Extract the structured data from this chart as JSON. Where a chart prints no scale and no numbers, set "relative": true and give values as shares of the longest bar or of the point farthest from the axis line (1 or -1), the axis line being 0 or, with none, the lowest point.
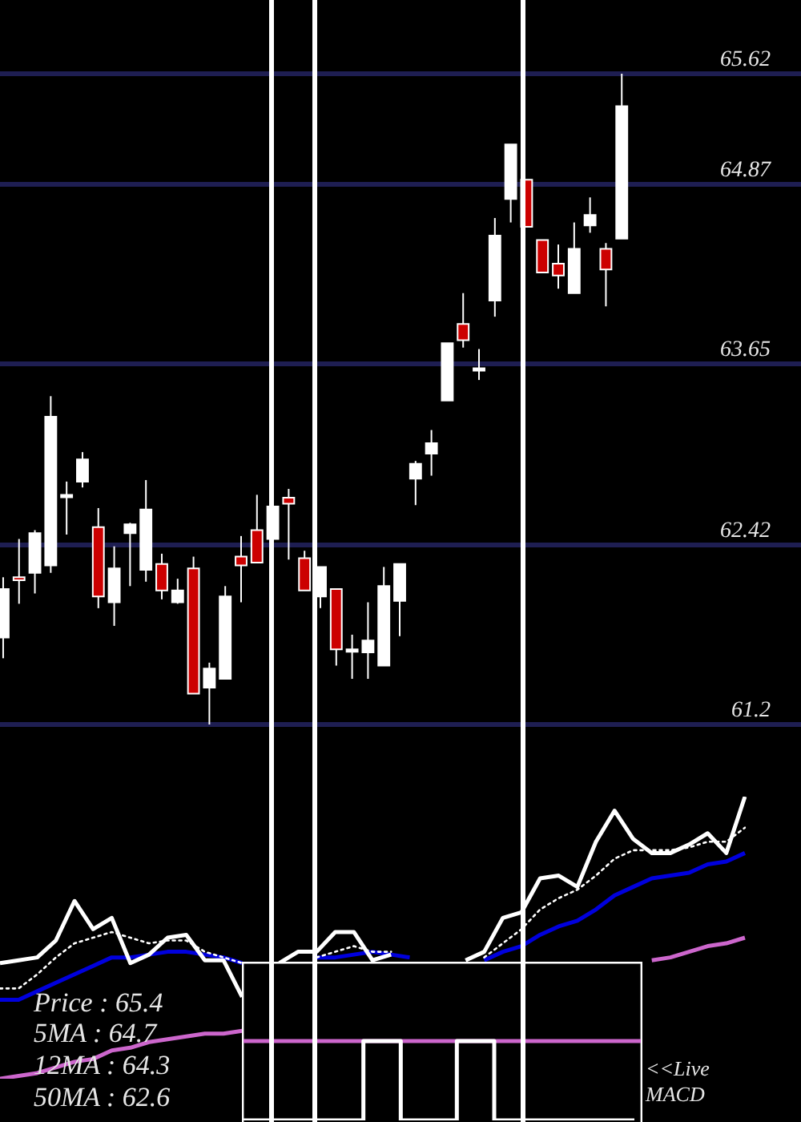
{
  "chart_data": [
    {
      "type": "candlestick",
      "categories": [
        null,
        null,
        null,
        null,
        null,
        null,
        null,
        null,
        null,
        null,
        null,
        null,
        null,
        null,
        null,
        null,
        null,
        null,
        null,
        null,
        null,
        null,
        null,
        null,
        null,
        null,
        null,
        null,
        null,
        null,
        null,
        null,
        null,
        null,
        null,
        null,
        null,
        null,
        null,
        null
      ],
      "ohlc": [
        [
          61.79,
          62.2,
          61.65,
          62.12
        ],
        [
          62.2,
          62.46,
          62.02,
          62.18
        ],
        [
          62.23,
          62.52,
          62.09,
          62.5
        ],
        [
          62.28,
          63.43,
          62.23,
          63.29
        ],
        [
          62.76,
          62.85,
          62.49,
          62.76
        ],
        [
          62.85,
          63.05,
          62.81,
          63.0
        ],
        [
          62.54,
          62.67,
          61.99,
          62.07
        ],
        [
          62.03,
          62.41,
          61.87,
          62.26
        ],
        [
          62.5,
          62.57,
          62.14,
          62.56
        ],
        [
          62.25,
          62.86,
          62.17,
          62.66
        ],
        [
          62.29,
          62.36,
          62.05,
          62.11
        ],
        [
          62.03,
          62.19,
          62.02,
          62.11
        ],
        [
          62.26,
          62.34,
          61.41,
          61.41
        ],
        [
          61.45,
          61.62,
          61.2,
          61.58
        ],
        [
          61.51,
          62.14,
          61.51,
          62.07
        ],
        [
          62.34,
          62.48,
          62.03,
          62.28
        ],
        [
          62.52,
          62.76,
          62.3,
          62.3
        ],
        [
          62.46,
          62.8,
          62.31,
          62.68
        ],
        [
          62.74,
          62.8,
          62.32,
          62.7
        ],
        [
          62.33,
          62.38,
          62.11,
          62.11
        ],
        [
          62.07,
          62.27,
          61.99,
          62.27
        ],
        [
          62.12,
          62.12,
          61.6,
          61.71
        ],
        [
          61.71,
          61.81,
          61.51,
          61.71
        ],
        [
          61.69,
          62.03,
          61.51,
          61.77
        ],
        [
          61.6,
          62.27,
          61.6,
          62.14
        ],
        [
          62.04,
          62.29,
          61.8,
          62.29
        ],
        [
          62.87,
          62.99,
          62.69,
          62.97
        ],
        [
          63.04,
          63.2,
          62.89,
          63.11
        ],
        [
          63.4,
          63.79,
          63.4,
          63.79
        ],
        [
          63.92,
          64.13,
          63.76,
          63.81
        ],
        [
          63.62,
          63.75,
          63.54,
          63.62
        ],
        [
          64.08,
          64.64,
          63.97,
          64.52
        ],
        [
          64.77,
          65.14,
          64.61,
          65.14
        ],
        [
          64.9,
          64.9,
          64.58,
          64.58
        ],
        [
          64.49,
          64.49,
          64.27,
          64.27
        ],
        [
          64.33,
          64.46,
          64.16,
          64.25
        ],
        [
          64.13,
          64.61,
          64.13,
          64.43
        ],
        [
          64.59,
          64.78,
          64.54,
          64.66
        ],
        [
          64.43,
          64.47,
          64.04,
          64.29
        ],
        [
          64.5,
          65.62,
          64.5,
          65.4
        ]
      ],
      "colors": [
        "#ffffff",
        "#cc0000",
        "#ffffff",
        "#ffffff",
        "#ffffff",
        "#ffffff",
        "#cc0000",
        "#ffffff",
        "#ffffff",
        "#ffffff",
        "#cc0000",
        "#ffffff",
        "#cc0000",
        "#ffffff",
        "#ffffff",
        "#cc0000",
        "#cc0000",
        "#ffffff",
        "#cc0000",
        "#cc0000",
        "#ffffff",
        "#cc0000",
        "#ffffff",
        "#ffffff",
        "#ffffff",
        "#ffffff",
        "#ffffff",
        "#ffffff",
        "#ffffff",
        "#cc0000",
        "#ffffff",
        "#ffffff",
        "#ffffff",
        "#cc0000",
        "#cc0000",
        "#cc0000",
        "#ffffff",
        "#ffffff",
        "#cc0000",
        "#ffffff"
      ],
      "ylim": [
        61.2,
        65.62
      ],
      "yticks": [
        61.2,
        62.42,
        63.65,
        64.87,
        65.62
      ],
      "grid": "y",
      "tick_labels": "y"
    },
    {
      "type": "line",
      "relative": true,
      "categories": [
        null,
        null,
        null,
        null,
        null,
        null,
        null,
        null,
        null,
        null,
        null,
        null,
        null,
        null,
        null,
        null,
        null,
        null,
        null,
        null,
        null,
        null,
        null,
        null,
        null,
        null,
        null,
        null,
        null,
        null,
        null,
        null,
        null,
        null,
        null,
        null,
        null,
        null,
        null,
        null,
        null
      ],
      "series": [
        {
          "color": "#ffffff",
          "values": [
            0.41,
            0.42,
            0.43,
            0.49,
            0.63,
            0.53,
            0.57,
            0.41,
            0.44,
            0.5,
            0.51,
            0.42,
            0.42,
            0.29,
            null,
            null,
            null,
            null,
            null,
            null,
            null,
            null,
            null,
            null,
            null,
            null,
            null,
            null,
            null,
            null,
            null,
            null,
            null,
            null,
            null,
            null,
            null,
            null,
            null,
            null,
            null
          ]
        },
        {
          "color": "#ffffff",
          "values": [
            null,
            null,
            null,
            null,
            null,
            null,
            null,
            null,
            null,
            null,
            null,
            null,
            null,
            null,
            null,
            0.41,
            0.45,
            0.45,
            0.52,
            0.52,
            0.42,
            0.44,
            null,
            null,
            null,
            null,
            null,
            null,
            null,
            null,
            null,
            null,
            null,
            null,
            null,
            null,
            null,
            null,
            null,
            null,
            null
          ]
        },
        {
          "color": "#ffffff",
          "values": [
            null,
            null,
            null,
            null,
            null,
            null,
            null,
            null,
            null,
            null,
            null,
            null,
            null,
            null,
            null,
            null,
            null,
            null,
            null,
            null,
            null,
            null,
            null,
            null,
            null,
            0.42,
            0.45,
            0.57,
            0.59,
            0.71,
            0.72,
            0.68,
            0.84,
            0.95,
            0.85,
            0.8,
            0.8,
            0.83,
            0.87,
            0.8,
            1
          ]
        },
        {
          "color": "#ffffff",
          "line_style": "dotted",
          "values": [
            0.32,
            0.32,
            0.37,
            0.43,
            0.48,
            0.5,
            0.52,
            0.5,
            0.48,
            0.49,
            0.49,
            0.45,
            0.43,
            0.41,
            null,
            null,
            null,
            null,
            null,
            null,
            null,
            null,
            null,
            null,
            null,
            null,
            null,
            null,
            null,
            null,
            null,
            null,
            null,
            null,
            null,
            null,
            null,
            null,
            null,
            null,
            null
          ]
        },
        {
          "color": "#ffffff",
          "line_style": "dotted",
          "values": [
            null,
            null,
            null,
            null,
            null,
            null,
            null,
            null,
            null,
            null,
            null,
            null,
            null,
            null,
            null,
            null,
            null,
            0.43,
            0.45,
            0.47,
            0.45,
            0.45,
            null,
            null,
            null,
            null,
            null,
            null,
            null,
            null,
            null,
            null,
            null,
            null,
            null,
            null,
            null,
            null,
            null,
            null,
            null
          ]
        },
        {
          "color": "#ffffff",
          "line_style": "dotted",
          "values": [
            null,
            null,
            null,
            null,
            null,
            null,
            null,
            null,
            null,
            null,
            null,
            null,
            null,
            null,
            null,
            null,
            null,
            null,
            null,
            null,
            null,
            null,
            null,
            null,
            null,
            null,
            0.43,
            0.48,
            0.53,
            0.6,
            0.64,
            0.67,
            0.72,
            0.78,
            0.81,
            0.81,
            0.81,
            0.82,
            0.84,
            0.84,
            0.89
          ]
        },
        {
          "color": "#0000dd",
          "values": [
            0.28,
            0.28,
            0.31,
            0.34,
            0.37,
            0.4,
            0.43,
            0.43,
            0.44,
            0.45,
            0.45,
            0.44,
            0.43,
            0.41,
            null,
            null,
            null,
            null,
            null,
            null,
            null,
            null,
            null,
            null,
            null,
            null,
            null,
            null,
            null,
            null,
            null,
            null,
            null,
            null,
            null,
            null,
            null,
            null,
            null,
            null,
            null
          ]
        },
        {
          "color": "#0000dd",
          "values": [
            null,
            null,
            null,
            null,
            null,
            null,
            null,
            null,
            null,
            null,
            null,
            null,
            null,
            null,
            null,
            null,
            null,
            0.43,
            0.43,
            0.44,
            0.45,
            0.44,
            0.43,
            null,
            null,
            null,
            null,
            null,
            null,
            null,
            null,
            null,
            null,
            null,
            null,
            null,
            null,
            null,
            null,
            null,
            null
          ]
        },
        {
          "color": "#0000dd",
          "values": [
            null,
            null,
            null,
            null,
            null,
            null,
            null,
            null,
            null,
            null,
            null,
            null,
            null,
            null,
            null,
            null,
            null,
            null,
            null,
            null,
            null,
            null,
            null,
            null,
            null,
            null,
            0.42,
            0.45,
            0.47,
            0.51,
            0.54,
            0.56,
            0.6,
            0.65,
            0.68,
            0.71,
            0.72,
            0.73,
            0.76,
            0.77,
            0.8
          ]
        },
        {
          "color": "#cc66cc",
          "values": [
            0,
            0.01,
            0.02,
            0.04,
            0.06,
            0.07,
            0.1,
            0.11,
            0.13,
            0.14,
            0.15,
            0.16,
            0.16,
            0.17,
            null,
            null,
            null,
            null,
            null,
            null,
            null,
            null,
            null,
            null,
            null,
            null,
            null,
            null,
            null,
            null,
            null,
            null,
            null,
            null,
            null,
            null,
            null,
            null,
            null,
            null,
            null
          ]
        },
        {
          "color": "#cc66cc",
          "values": [
            null,
            null,
            null,
            null,
            null,
            null,
            null,
            null,
            null,
            null,
            null,
            null,
            null,
            null,
            null,
            null,
            null,
            null,
            null,
            null,
            null,
            null,
            null,
            null,
            null,
            null,
            null,
            null,
            null,
            null,
            null,
            null,
            null,
            null,
            null,
            0.42,
            0.43,
            0.45,
            0.47,
            0.48,
            0.5
          ]
        }
      ],
      "annotations": [
        "Price : 65.4",
        "5MA : 64.7",
        "12MA : 64.3",
        "50MA : 62.6"
      ]
    },
    {
      "type": "step",
      "relative": true,
      "categories": [
        null,
        null,
        null,
        null,
        null,
        null,
        null,
        null,
        null,
        null,
        null,
        null,
        null,
        null,
        null,
        null,
        null,
        null,
        null,
        null,
        null,
        null
      ],
      "values": [
        -1,
        -1,
        -1,
        -1,
        -1,
        -1,
        -1,
        0,
        0,
        -1,
        -1,
        -1,
        0,
        0,
        -1,
        -1,
        -1,
        -1,
        -1,
        -1,
        -1,
        -1
      ],
      "color": "#ffffff",
      "ref_lines": [
        {
          "axis": "y",
          "value": 0,
          "color": "#cc66cc"
        }
      ],
      "annotations": [
        "<<Live MACD"
      ]
    }
  ]
}
